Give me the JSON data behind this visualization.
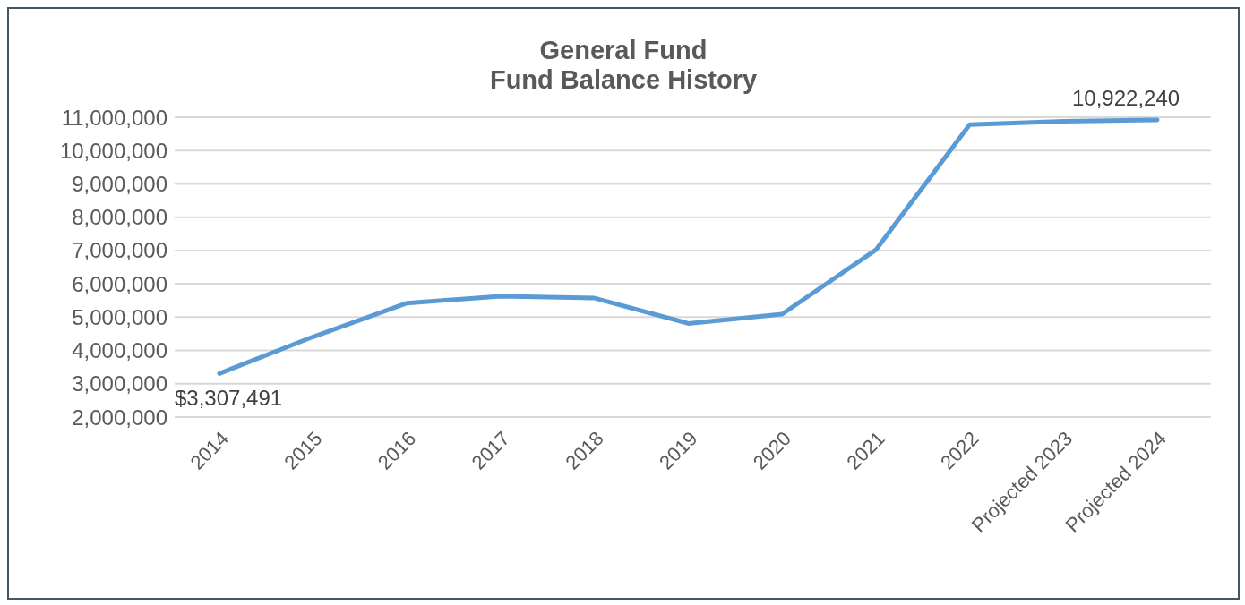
{
  "chart_data": {
    "type": "line",
    "title": "General Fund\nFund Balance History",
    "categories": [
      "2014",
      "2015",
      "2016",
      "2017",
      "2018",
      "2019",
      "2020",
      "2021",
      "2022",
      "Projected 2023",
      "Projected 2024"
    ],
    "series": [
      {
        "color": "#5b9bd5",
        "values": [
          3307491,
          4410000,
          5420000,
          5630000,
          5570000,
          4810000,
          5090000,
          7020000,
          10780000,
          10880000,
          10922240
        ],
        "value_labels": [
          "$3,307,491",
          null,
          null,
          null,
          null,
          null,
          null,
          null,
          null,
          null,
          "10,922,240"
        ]
      }
    ],
    "ylim": [
      2000000,
      11000000
    ],
    "yticks": [
      {
        "value": 2000000,
        "label": "2,000,000"
      },
      {
        "value": 3000000,
        "label": "3,000,000"
      },
      {
        "value": 4000000,
        "label": "4,000,000"
      },
      {
        "value": 5000000,
        "label": "5,000,000"
      },
      {
        "value": 6000000,
        "label": "6,000,000"
      },
      {
        "value": 7000000,
        "label": "7,000,000"
      },
      {
        "value": 8000000,
        "label": "8,000,000"
      },
      {
        "value": 9000000,
        "label": "9,000,000"
      },
      {
        "value": 10000000,
        "label": "10,000,000"
      },
      {
        "value": 11000000,
        "label": "11,000,000"
      }
    ],
    "grid": "y",
    "marker": "none",
    "line_style": "solid"
  }
}
